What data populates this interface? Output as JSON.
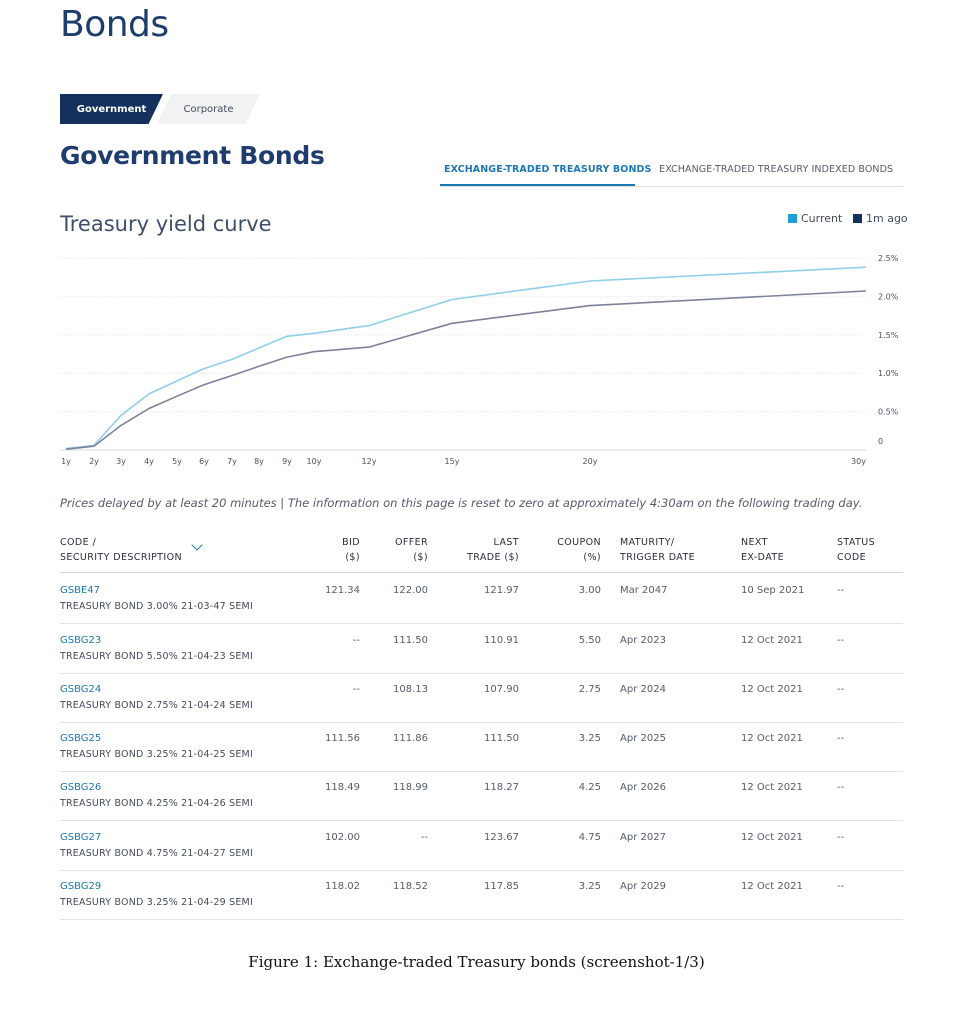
{
  "page": {
    "title": "Bonds"
  },
  "segments": {
    "government": "Government",
    "corporate": "Corporate"
  },
  "section_title": "Government Bonds",
  "tabs": {
    "active": "EXCHANGE-TRADED TREASURY BONDS",
    "inactive": "EXCHANGE-TRADED TREASURY INDEXED BONDS"
  },
  "chart_title": "Treasury yield curve",
  "legend": {
    "current": "Current",
    "ago": "1m ago"
  },
  "colors": {
    "current": "#8fcfe8",
    "ago": "#7d829c",
    "accent": "#1d78b5",
    "navy": "#14315e"
  },
  "chart_data": {
    "type": "line",
    "x_ticks": [
      {
        "v": 1,
        "label": "1y"
      },
      {
        "v": 2,
        "label": "2y"
      },
      {
        "v": 3,
        "label": "3y"
      },
      {
        "v": 4,
        "label": "4y"
      },
      {
        "v": 5,
        "label": "5y"
      },
      {
        "v": 6,
        "label": "6y"
      },
      {
        "v": 7,
        "label": "7y"
      },
      {
        "v": 8,
        "label": "8y"
      },
      {
        "v": 9,
        "label": "9y"
      },
      {
        "v": 10,
        "label": "10y"
      },
      {
        "v": 12,
        "label": "12y"
      },
      {
        "v": 15,
        "label": "15y"
      },
      {
        "v": 20,
        "label": "20y"
      },
      {
        "v": 30,
        "label": "30y"
      }
    ],
    "y_ticks": [
      {
        "v": 0,
        "label": "0"
      },
      {
        "v": 0.5,
        "label": "0.5%"
      },
      {
        "v": 1.0,
        "label": "1.0%"
      },
      {
        "v": 1.5,
        "label": "1.5%"
      },
      {
        "v": 2.0,
        "label": "2.0%"
      },
      {
        "v": 2.5,
        "label": "2.5%"
      }
    ],
    "ylim": [
      0,
      2.5
    ],
    "grid": true,
    "legend_position": "top-right",
    "series": [
      {
        "name": "Current",
        "points": [
          [
            1,
            0.02
          ],
          [
            2,
            0.06
          ],
          [
            3,
            0.45
          ],
          [
            4,
            0.73
          ],
          [
            5,
            0.9
          ],
          [
            6,
            1.06
          ],
          [
            7,
            1.18
          ],
          [
            8,
            1.33
          ],
          [
            9,
            1.48
          ],
          [
            10,
            1.52
          ],
          [
            12,
            1.62
          ],
          [
            15,
            1.96
          ],
          [
            20,
            2.2
          ],
          [
            30,
            2.38
          ]
        ]
      },
      {
        "name": "1m ago",
        "points": [
          [
            1,
            0.01
          ],
          [
            2,
            0.05
          ],
          [
            3,
            0.32
          ],
          [
            4,
            0.54
          ],
          [
            5,
            0.7
          ],
          [
            6,
            0.85
          ],
          [
            7,
            0.97
          ],
          [
            8,
            1.09
          ],
          [
            9,
            1.21
          ],
          [
            10,
            1.28
          ],
          [
            12,
            1.34
          ],
          [
            15,
            1.65
          ],
          [
            20,
            1.88
          ],
          [
            30,
            2.07
          ]
        ]
      }
    ]
  },
  "note": "Prices delayed by at least 20 minutes | The information on this page is reset to zero at approximately 4:30am on the following trading day.",
  "table": {
    "headers": {
      "code": [
        "CODE /",
        "SECURITY DESCRIPTION"
      ],
      "bid": [
        "BID",
        "($)"
      ],
      "offer": [
        "OFFER",
        "($)"
      ],
      "last": [
        "LAST",
        "TRADE ($)"
      ],
      "coupon": [
        "COUPON",
        "(%)"
      ],
      "maturity": [
        "MATURITY/",
        "TRIGGER DATE"
      ],
      "exdate": [
        "NEXT",
        "EX-DATE"
      ],
      "status": [
        "STATUS",
        "CODE"
      ]
    },
    "rows": [
      {
        "code": "GSBE47",
        "desc": "TREASURY BOND 3.00% 21-03-47 SEMI",
        "bid": "121.34",
        "offer": "122.00",
        "last": "121.97",
        "coupon": "3.00",
        "maturity": "Mar 2047",
        "exdate": "10 Sep 2021",
        "status": "--"
      },
      {
        "code": "GSBG23",
        "desc": "TREASURY BOND 5.50% 21-04-23 SEMI",
        "bid": "--",
        "offer": "111.50",
        "last": "110.91",
        "coupon": "5.50",
        "maturity": "Apr 2023",
        "exdate": "12 Oct 2021",
        "status": "--"
      },
      {
        "code": "GSBG24",
        "desc": "TREASURY BOND 2.75% 21-04-24 SEMI",
        "bid": "--",
        "offer": "108.13",
        "last": "107.90",
        "coupon": "2.75",
        "maturity": "Apr 2024",
        "exdate": "12 Oct 2021",
        "status": "--"
      },
      {
        "code": "GSBG25",
        "desc": "TREASURY BOND 3.25% 21-04-25 SEMI",
        "bid": "111.56",
        "offer": "111.86",
        "last": "111.50",
        "coupon": "3.25",
        "maturity": "Apr 2025",
        "exdate": "12 Oct 2021",
        "status": "--"
      },
      {
        "code": "GSBG26",
        "desc": "TREASURY BOND 4.25% 21-04-26 SEMI",
        "bid": "118.49",
        "offer": "118.99",
        "last": "118.27",
        "coupon": "4.25",
        "maturity": "Apr 2026",
        "exdate": "12 Oct 2021",
        "status": "--"
      },
      {
        "code": "GSBG27",
        "desc": "TREASURY BOND 4.75% 21-04-27 SEMI",
        "bid": "102.00",
        "offer": "--",
        "last": "123.67",
        "coupon": "4.75",
        "maturity": "Apr 2027",
        "exdate": "12 Oct 2021",
        "status": "--"
      },
      {
        "code": "GSBG29",
        "desc": "TREASURY BOND 3.25% 21-04-29 SEMI",
        "bid": "118.02",
        "offer": "118.52",
        "last": "117.85",
        "coupon": "3.25",
        "maturity": "Apr 2029",
        "exdate": "12 Oct 2021",
        "status": "--"
      }
    ]
  },
  "caption": "Figure 1: Exchange-traded Treasury bonds (screenshot-1/3)"
}
